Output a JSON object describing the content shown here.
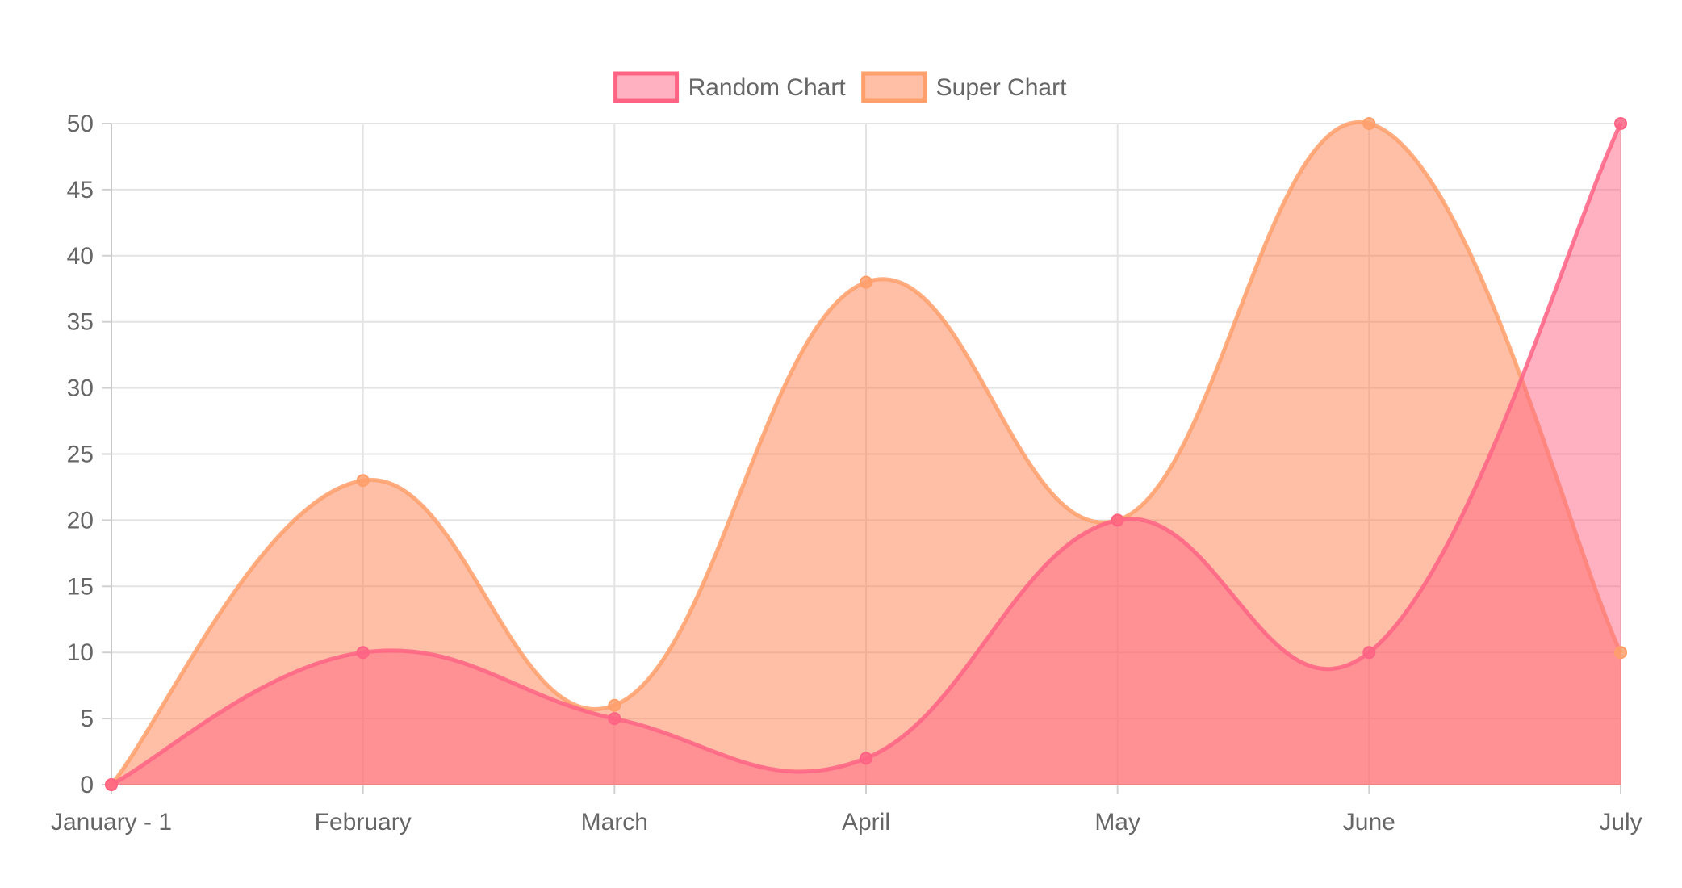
{
  "chart_data": {
    "type": "area",
    "categories": [
      "January - 1",
      "February",
      "March",
      "April",
      "May",
      "June",
      "July"
    ],
    "ylim": [
      0,
      50
    ],
    "ytick_step": 5,
    "grid": true,
    "legend_position": "top-center",
    "series": [
      {
        "name": "Random Chart",
        "values": [
          0,
          10,
          5,
          2,
          20,
          10,
          50
        ],
        "line_color": "#ff6384",
        "fill_color": "#ff6384",
        "fill_opacity": 0.5
      },
      {
        "name": "Super Chart",
        "values": [
          0,
          23,
          6,
          38,
          20,
          50,
          10
        ],
        "line_color": "#ff9f6b",
        "fill_color": "#ff7f4f",
        "fill_opacity": 0.5
      }
    ]
  }
}
